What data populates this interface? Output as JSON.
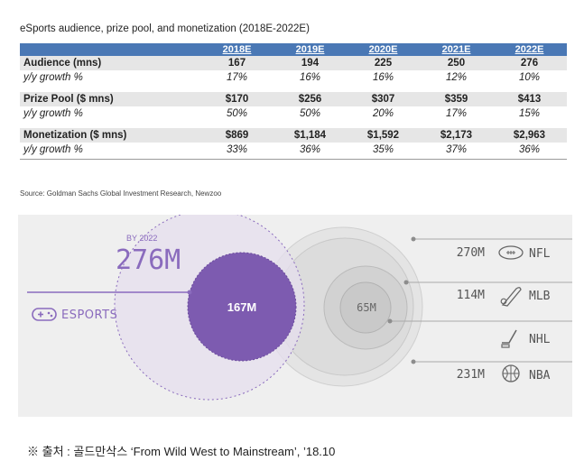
{
  "title": "eSports audience, prize pool, and monetization (2018E-2022E)",
  "years": [
    "2018E",
    "2019E",
    "2020E",
    "2021E",
    "2022E"
  ],
  "rows": [
    {
      "label": "Audience (mns)",
      "values": [
        "167",
        "194",
        "225",
        "250",
        "276"
      ]
    },
    {
      "label": "y/y growth %",
      "values": [
        "17%",
        "16%",
        "16%",
        "12%",
        "10%"
      ]
    },
    {
      "label": "Prize Pool ($ mns)",
      "values": [
        "$170",
        "$256",
        "$307",
        "$359",
        "$413"
      ]
    },
    {
      "label": "y/y growth %",
      "values": [
        "50%",
        "50%",
        "20%",
        "17%",
        "15%"
      ]
    },
    {
      "label": "Monetization ($ mns)",
      "values": [
        "$869",
        "$1,184",
        "$1,592",
        "$2,173",
        "$2,963"
      ]
    },
    {
      "label": "y/y growth %",
      "values": [
        "33%",
        "36%",
        "35%",
        "37%",
        "36%"
      ]
    }
  ],
  "source": "Source: Goldman Sachs Global Investment Research, Newzoo",
  "infographic": {
    "by_label": "BY 2022",
    "by_value": "276M",
    "esports_label": "ESPORTS",
    "esports_value": "167M",
    "nhl_value": "65M",
    "leagues": [
      {
        "value": "270M",
        "name": "NFL",
        "icon": "football-icon"
      },
      {
        "value": "114M",
        "name": "MLB",
        "icon": "baseball-bat-icon"
      },
      {
        "value": "",
        "name": "NHL",
        "icon": "hockey-stick-icon"
      },
      {
        "value": "231M",
        "name": "NBA",
        "icon": "basketball-icon"
      }
    ],
    "colors": {
      "esports": "#7d5bb0",
      "esports_light": "#ddd4ea",
      "gray_circle": "#d6d6d6",
      "accent": "#8a6bbd"
    }
  },
  "footnote": "※ 출처 : 골드만삭스 ‘From Wild West to Mainstream’, ’18.10"
}
